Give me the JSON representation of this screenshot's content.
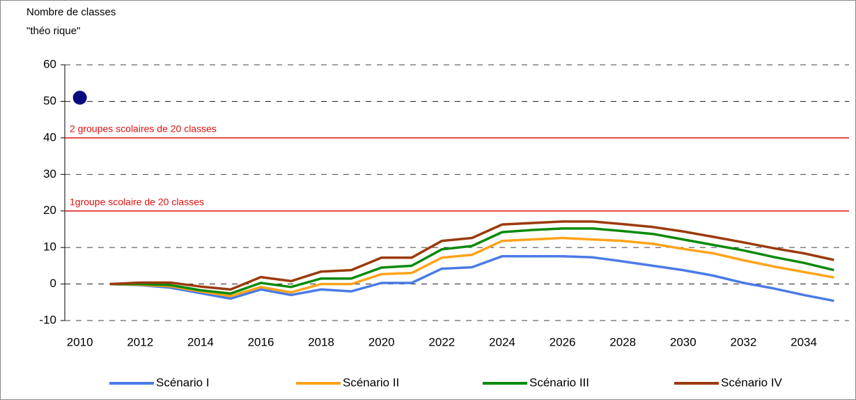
{
  "chart_data": {
    "type": "line",
    "y_axis_label": [
      "Nombre de classes",
      "\"théo rique\""
    ],
    "categories": [
      "2010",
      null,
      "2012",
      null,
      "2014",
      null,
      "2016",
      null,
      "2018",
      null,
      "2020",
      null,
      "2022",
      null,
      "2024",
      null,
      "2026",
      null,
      "2028",
      null,
      "2030",
      null,
      "2032",
      null,
      "2034",
      null
    ],
    "series": [
      {
        "name": "Scénario I",
        "color": "#4a7be6",
        "values": [
          null,
          0,
          -0.3,
          -1,
          -2.5,
          -4,
          -1.5,
          -3,
          -1.5,
          -2,
          0.3,
          0.3,
          4.2,
          4.6,
          7.6,
          7.6,
          7.6,
          7.3,
          6.2,
          5,
          3.8,
          2.3,
          0.3,
          -1.2,
          -3,
          -4.6
        ]
      },
      {
        "name": "Scénario II",
        "color": "#ffa31a",
        "values": [
          null,
          0,
          -0.2,
          -0.6,
          -2,
          -3.3,
          -0.8,
          -2.3,
          0,
          0,
          2.7,
          3,
          7.2,
          8,
          11.8,
          12.2,
          12.6,
          12.2,
          11.8,
          11,
          9.6,
          8.4,
          6.5,
          4.8,
          3.3,
          1.8
        ]
      },
      {
        "name": "Scénario III",
        "color": "#0a8a0a",
        "values": [
          null,
          0,
          0,
          -0.3,
          -1.7,
          -2.6,
          0.3,
          -0.8,
          1.5,
          1.5,
          4.5,
          5,
          9.5,
          10.4,
          14.2,
          14.8,
          15.2,
          15.2,
          14.5,
          13.7,
          12.2,
          10.7,
          9.2,
          7.4,
          5.8,
          3.8
        ]
      },
      {
        "name": "Scénario IV",
        "color": "#9b3a0c",
        "values": [
          null,
          0,
          0.4,
          0.4,
          -0.7,
          -1.5,
          1.9,
          0.8,
          3.4,
          3.8,
          7.2,
          7.2,
          11.8,
          12.6,
          16.3,
          16.7,
          17.1,
          17.1,
          16.4,
          15.6,
          14.4,
          12.9,
          11.4,
          9.8,
          8.4,
          6.6
        ]
      }
    ],
    "marker_series": {
      "color": "#0a0a80",
      "values": [
        51,
        null,
        null,
        null,
        null,
        null,
        null,
        null,
        null,
        null,
        null,
        null,
        null,
        null,
        null,
        null,
        null,
        null,
        null,
        null,
        null,
        null,
        null,
        null,
        null,
        null
      ]
    },
    "reference_lines": [
      {
        "value": 40,
        "label": "2 groupes scolaires de 20 classes",
        "color": "#e01010"
      },
      {
        "value": 20,
        "label": "1groupe scolaire de 20 classes",
        "color": "#e01010"
      }
    ],
    "ylim": [
      -10,
      60
    ],
    "yticks": [
      -10,
      0,
      10,
      20,
      30,
      40,
      50,
      60
    ],
    "grid": true,
    "legend": "bottom"
  }
}
